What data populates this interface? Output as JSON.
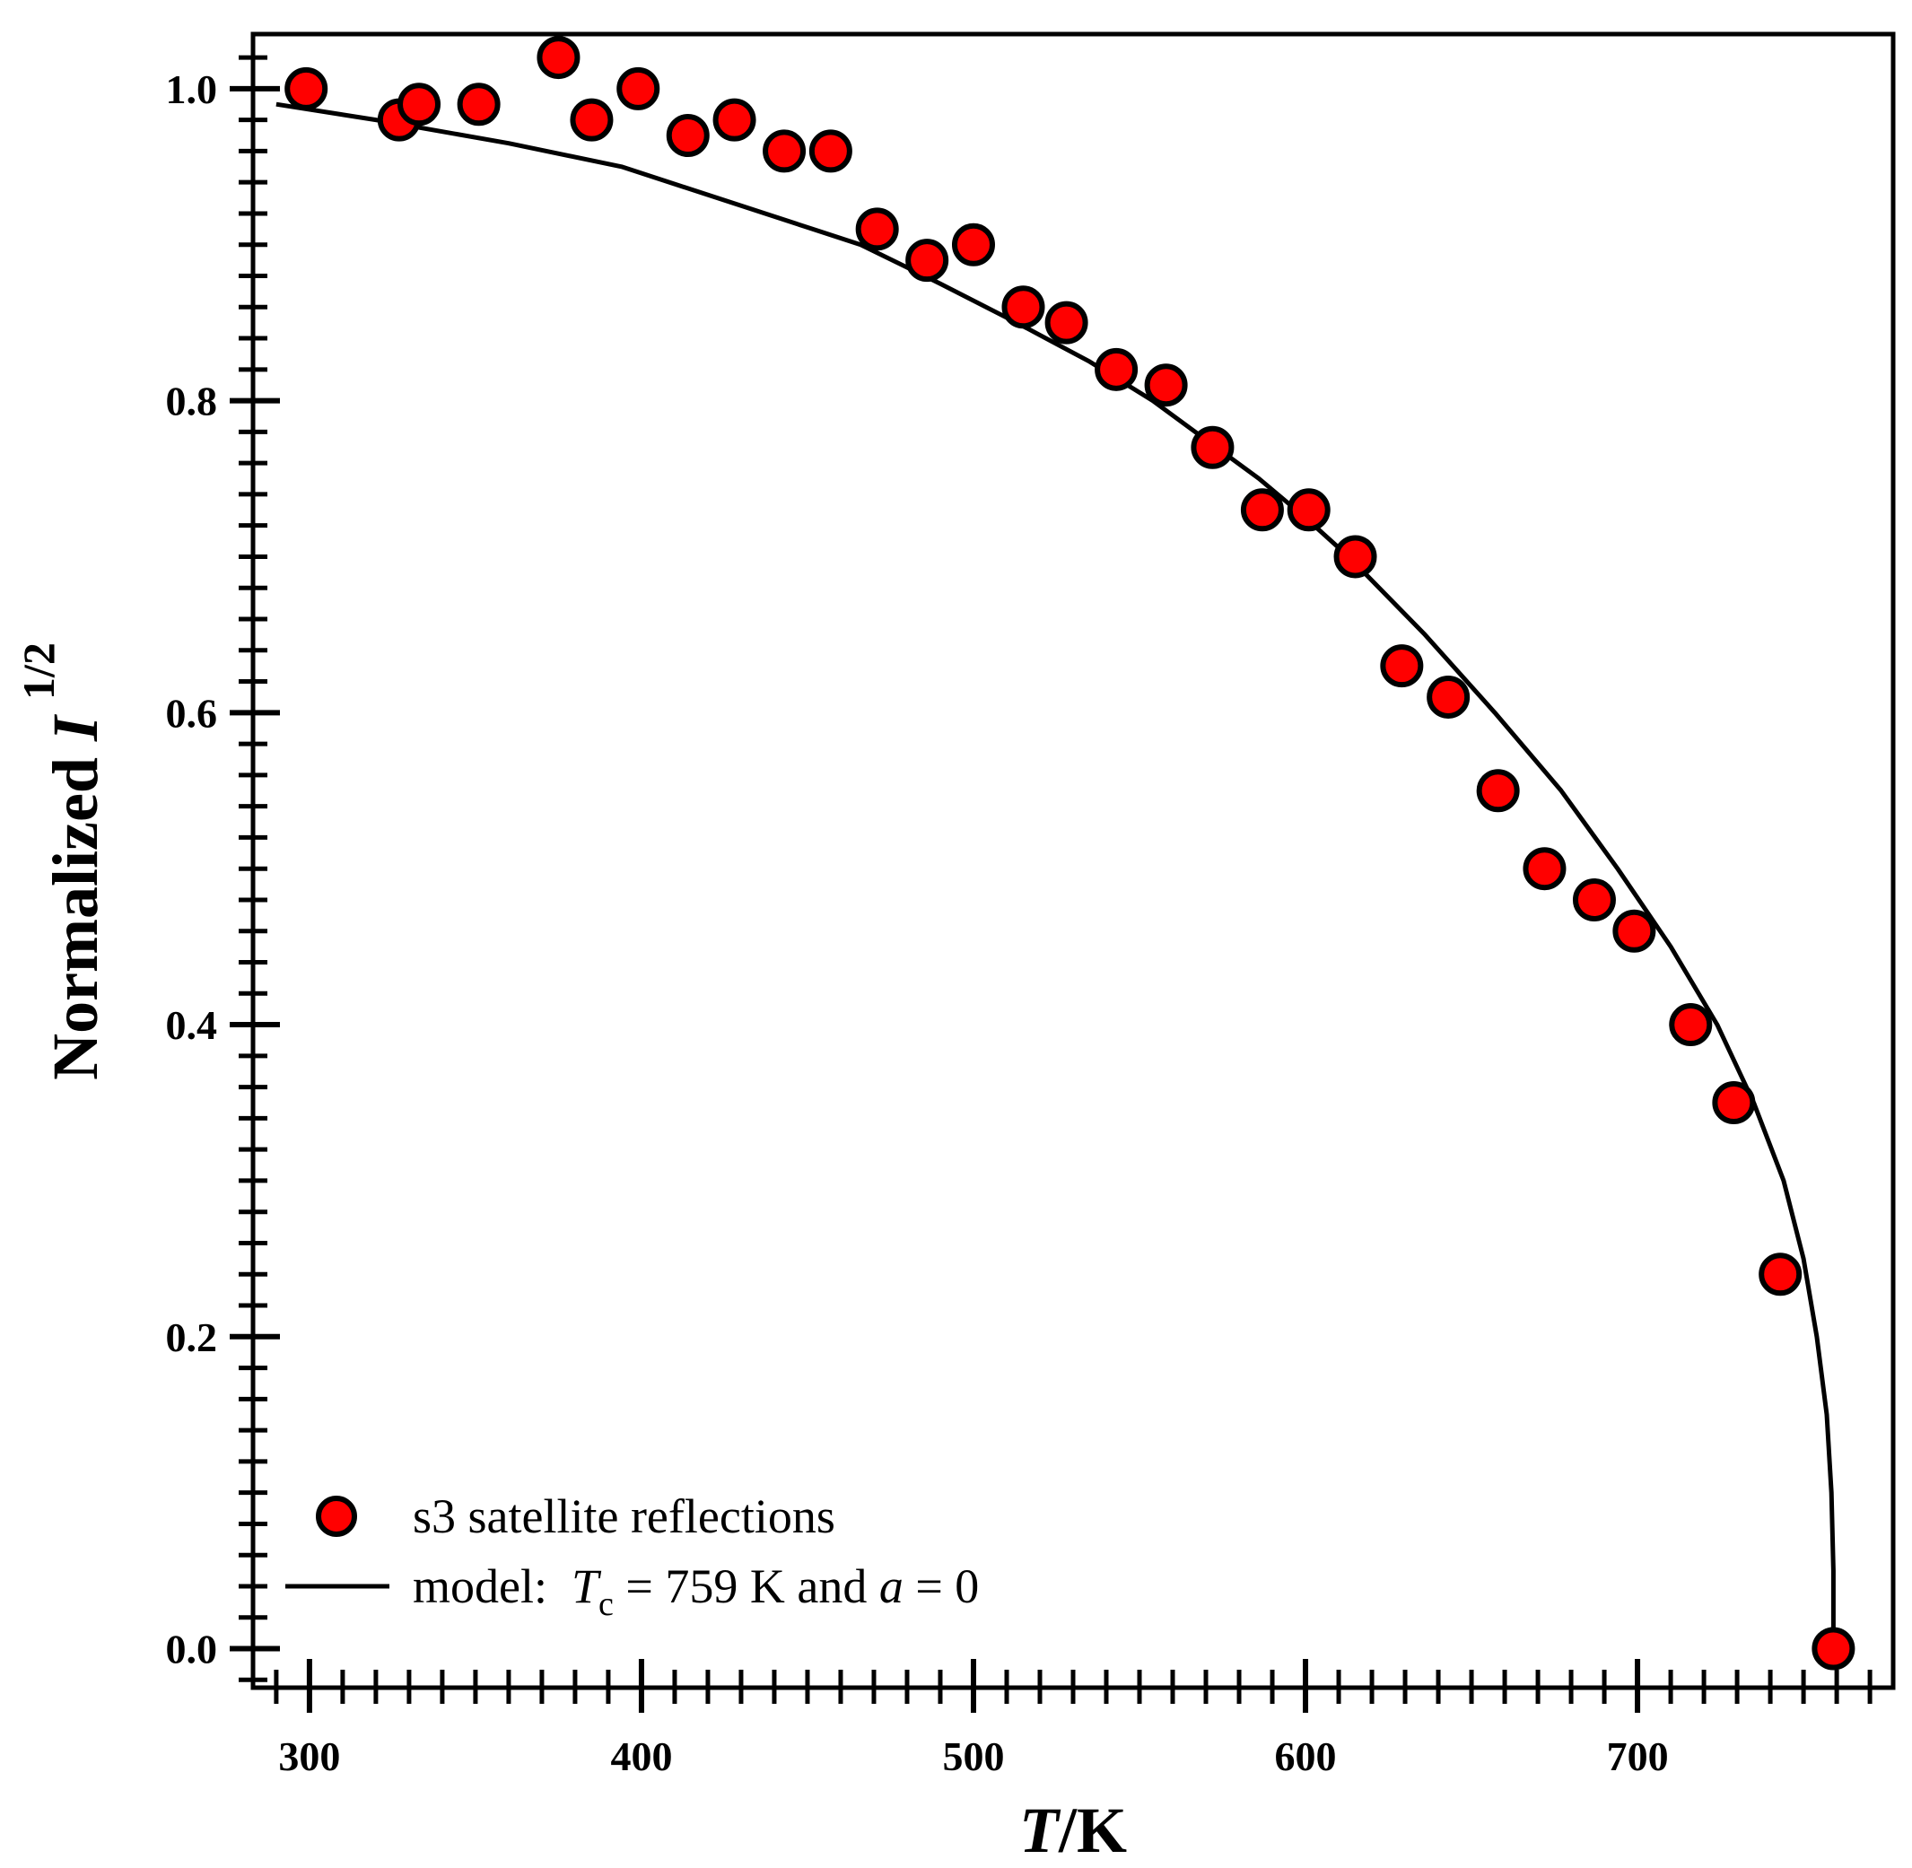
{
  "chart_data": {
    "type": "scatter",
    "xlabel": {
      "italic": "T",
      "rest": "/K"
    },
    "ylabel": {
      "text": "Normalized ",
      "italic": "I",
      "superscript": "1/2"
    },
    "xlim": [
      283,
      777
    ],
    "ylim": [
      -0.025,
      1.035
    ],
    "xticks": [
      300,
      400,
      500,
      600,
      700
    ],
    "xtick_labels": [
      "300",
      "400",
      "500",
      "600",
      "700"
    ],
    "x_minor_step": 10,
    "yticks": [
      0.0,
      0.2,
      0.4,
      0.6,
      0.8,
      1.0
    ],
    "ytick_labels": [
      "0.0",
      "0.2",
      "0.4",
      "0.6",
      "0.8",
      "1.0"
    ],
    "y_minor_step": 0.02,
    "series": [
      {
        "name": "s3 satellite reflections",
        "kind": "scatter",
        "marker_color": "#ff0000",
        "edge_color": "#000000",
        "points": [
          {
            "x": 299,
            "y": 1.0
          },
          {
            "x": 327,
            "y": 0.98
          },
          {
            "x": 333,
            "y": 0.99
          },
          {
            "x": 351,
            "y": 0.99
          },
          {
            "x": 375,
            "y": 1.02
          },
          {
            "x": 385,
            "y": 0.98
          },
          {
            "x": 399,
            "y": 1.0
          },
          {
            "x": 414,
            "y": 0.97
          },
          {
            "x": 428,
            "y": 0.98
          },
          {
            "x": 443,
            "y": 0.96
          },
          {
            "x": 457,
            "y": 0.96
          },
          {
            "x": 471,
            "y": 0.91
          },
          {
            "x": 486,
            "y": 0.89
          },
          {
            "x": 500,
            "y": 0.9
          },
          {
            "x": 515,
            "y": 0.86
          },
          {
            "x": 528,
            "y": 0.85
          },
          {
            "x": 543,
            "y": 0.82
          },
          {
            "x": 558,
            "y": 0.81
          },
          {
            "x": 572,
            "y": 0.77
          },
          {
            "x": 587,
            "y": 0.73
          },
          {
            "x": 601,
            "y": 0.73
          },
          {
            "x": 615,
            "y": 0.7
          },
          {
            "x": 629,
            "y": 0.63
          },
          {
            "x": 643,
            "y": 0.61
          },
          {
            "x": 658,
            "y": 0.55
          },
          {
            "x": 672,
            "y": 0.5
          },
          {
            "x": 687,
            "y": 0.48
          },
          {
            "x": 699,
            "y": 0.46
          },
          {
            "x": 716,
            "y": 0.4
          },
          {
            "x": 729,
            "y": 0.35
          },
          {
            "x": 743,
            "y": 0.24
          },
          {
            "x": 759,
            "y": 0.0
          }
        ]
      },
      {
        "name": "model",
        "kind": "line",
        "line_color": "#000000",
        "points": [
          {
            "x": 290,
            "y": 0.99
          },
          {
            "x": 320,
            "y": 0.98
          },
          {
            "x": 360,
            "y": 0.965
          },
          {
            "x": 394,
            "y": 0.95
          },
          {
            "x": 430,
            "y": 0.925
          },
          {
            "x": 466,
            "y": 0.9
          },
          {
            "x": 490,
            "y": 0.875
          },
          {
            "x": 513,
            "y": 0.85
          },
          {
            "x": 535,
            "y": 0.825
          },
          {
            "x": 554,
            "y": 0.8
          },
          {
            "x": 570,
            "y": 0.775
          },
          {
            "x": 586,
            "y": 0.75
          },
          {
            "x": 600,
            "y": 0.725
          },
          {
            "x": 613,
            "y": 0.7
          },
          {
            "x": 636,
            "y": 0.65
          },
          {
            "x": 657,
            "y": 0.6
          },
          {
            "x": 677,
            "y": 0.55
          },
          {
            "x": 694,
            "y": 0.5
          },
          {
            "x": 710,
            "y": 0.45
          },
          {
            "x": 724,
            "y": 0.4
          },
          {
            "x": 735,
            "y": 0.35
          },
          {
            "x": 744,
            "y": 0.3
          },
          {
            "x": 750,
            "y": 0.25
          },
          {
            "x": 754,
            "y": 0.2
          },
          {
            "x": 757,
            "y": 0.15
          },
          {
            "x": 758.4,
            "y": 0.1
          },
          {
            "x": 759,
            "y": 0.05
          },
          {
            "x": 759,
            "y": 0.0
          }
        ]
      }
    ],
    "legend": {
      "position": "bottom-left",
      "entries": [
        {
          "label": "s3 satellite reflections"
        },
        {
          "label_prefix": "model:  ",
          "tc_symbol": "T",
          "tc_subscript": "c",
          "tc_text": " = 759 K and ",
          "a_symbol": "a",
          "a_text": " = 0"
        }
      ]
    }
  }
}
